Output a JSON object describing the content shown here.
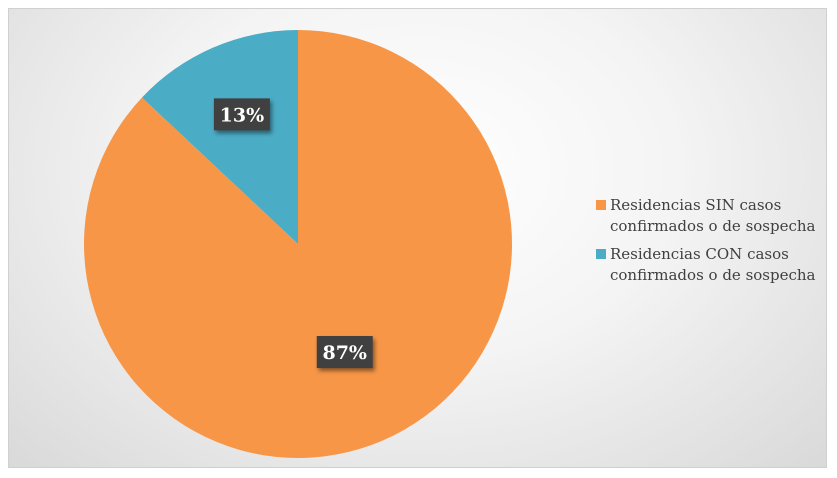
{
  "chart_data": {
    "type": "pie",
    "title": "",
    "categories": [
      "Residencias SIN casos confirmados o de sospecha",
      "Residencias CON casos confirmados o de sospecha"
    ],
    "values": [
      87,
      13
    ],
    "data_labels": [
      "87%",
      "13%"
    ],
    "colors": [
      "#F79646",
      "#4BACC6"
    ],
    "legend_position": "right",
    "legend": [
      {
        "label": "Residencias SIN casos\nconfirmados o de sospecha",
        "color": "#F79646"
      },
      {
        "label": "Residencias CON casos\nconfirmados o de sospecha",
        "color": "#4BACC6"
      }
    ]
  }
}
